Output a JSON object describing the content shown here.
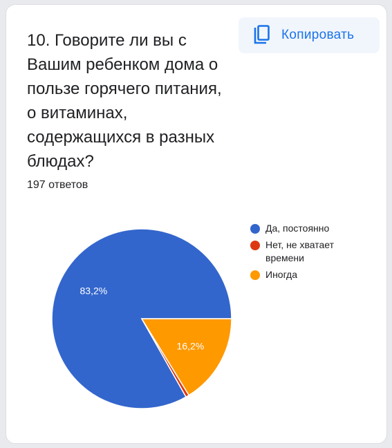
{
  "question": {
    "title": "10. Говорите ли вы с Вашим ребенком дома о пользе горячего питания, о витаминах, содержащихся в разных блюдах?",
    "responses": "197 ответов"
  },
  "toolbar": {
    "copy_label": "Копировать",
    "copy_icon": "copy-icon"
  },
  "chart_data": {
    "type": "pie",
    "title": "",
    "labels": [
      "Да, постоянно",
      "Нет, не хватает времени",
      "Иногда"
    ],
    "values": [
      83.2,
      0.6,
      16.2
    ],
    "data_labels": [
      "83,2%",
      "",
      "16,2%"
    ],
    "colors": [
      "#3366cc",
      "#dc3912",
      "#ff9900"
    ],
    "legend_position": "right",
    "start": "3 o'clock, counterclockwise"
  }
}
